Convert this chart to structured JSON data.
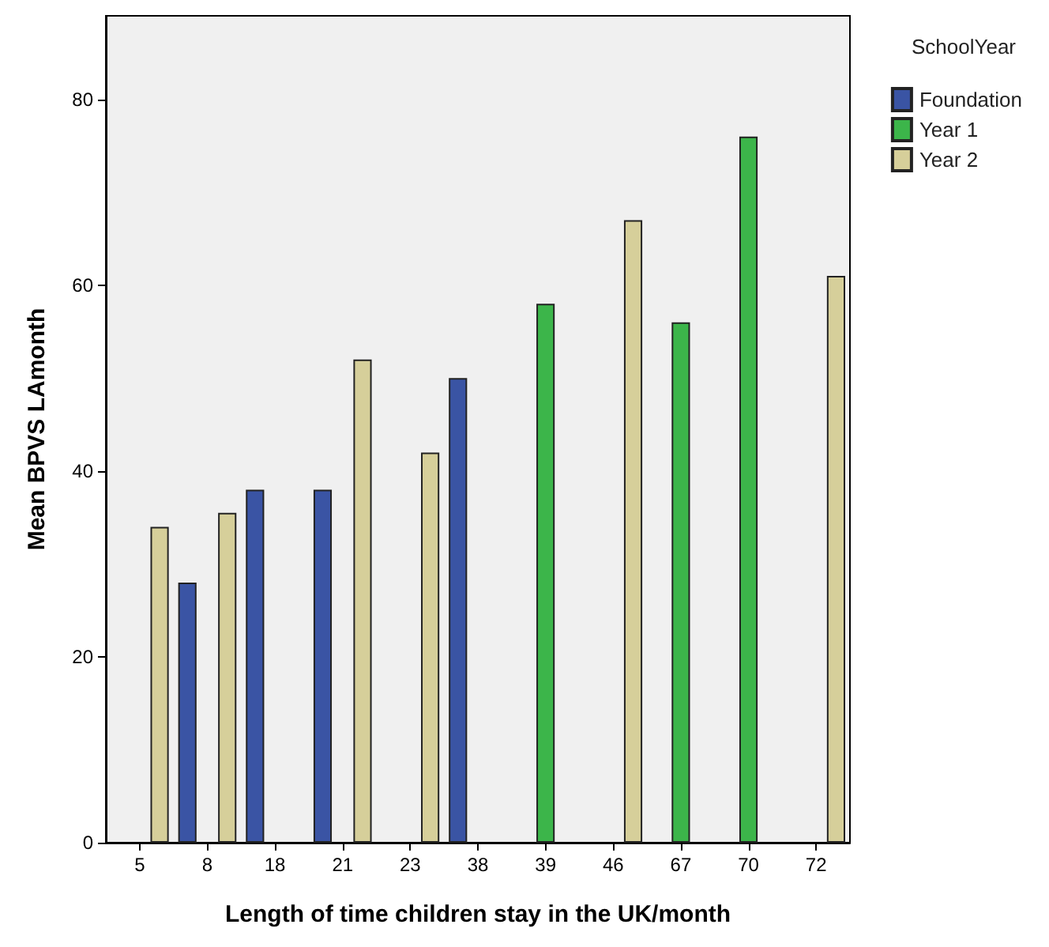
{
  "chart_data": {
    "type": "bar",
    "xlabel": "Length of time children stay in the UK/month",
    "ylabel": "Mean BPVS LAmonth",
    "legend_title": "SchoolYear",
    "categories": [
      "5",
      "8",
      "18",
      "21",
      "23",
      "38",
      "39",
      "46",
      "67",
      "70",
      "72"
    ],
    "series": [
      {
        "name": "Foundation",
        "color": "#3a54a4",
        "values": [
          null,
          28,
          38,
          38,
          null,
          50,
          null,
          null,
          null,
          null,
          null
        ]
      },
      {
        "name": "Year 1",
        "color": "#3cb54a",
        "values": [
          null,
          null,
          null,
          null,
          null,
          null,
          58,
          null,
          56,
          76,
          null
        ]
      },
      {
        "name": "Year 2",
        "color": "#d6cf9a",
        "values": [
          34,
          35.5,
          null,
          52,
          42,
          null,
          null,
          67,
          null,
          null,
          61
        ]
      }
    ],
    "ylim": [
      0,
      89
    ],
    "yticks": [
      0,
      20,
      40,
      60,
      80
    ],
    "grid": false,
    "legend": "top right"
  }
}
